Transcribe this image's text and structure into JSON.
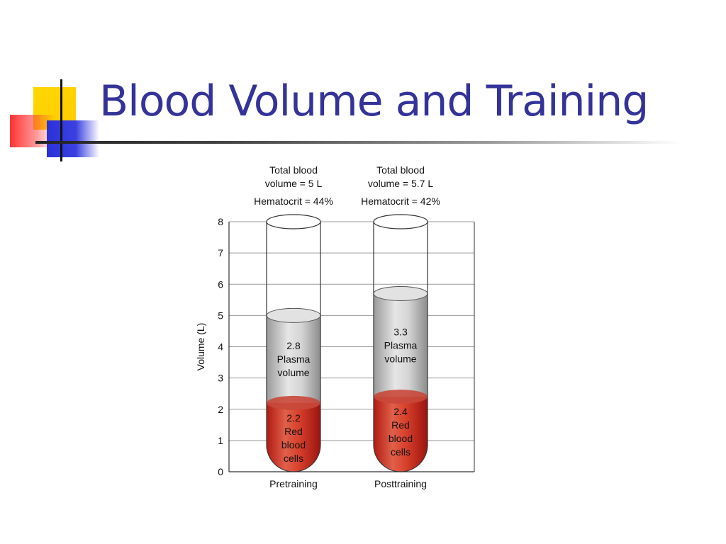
{
  "slide": {
    "title": "Blood Volume and Training",
    "title_color": "#333399"
  },
  "chart_data": {
    "type": "bar",
    "ylabel": "Volume (L)",
    "ylim": [
      0,
      8
    ],
    "yticks": [
      0,
      1,
      2,
      3,
      4,
      5,
      6,
      7,
      8
    ],
    "grid": true,
    "categories": [
      "Pretraining",
      "Posttraining"
    ],
    "header_lines": [
      [
        "Total blood",
        "volume = 5 L",
        "Hematocrit = 44%"
      ],
      [
        "Total blood",
        "volume = 5.7 L",
        "Hematocrit = 42%"
      ]
    ],
    "series": [
      {
        "key": "rbc",
        "values": [
          2.2,
          2.4
        ],
        "labels": [
          [
            "2.2",
            "Red",
            "blood",
            "cells"
          ],
          [
            "2.4",
            "Red",
            "blood",
            "cells"
          ]
        ],
        "color": "#c0281c"
      },
      {
        "key": "plasma",
        "values": [
          2.8,
          3.3
        ],
        "labels": [
          [
            "2.8",
            "Plasma",
            "volume"
          ],
          [
            "3.3",
            "Plasma",
            "volume"
          ]
        ],
        "color": "#c4c4c4"
      }
    ]
  }
}
